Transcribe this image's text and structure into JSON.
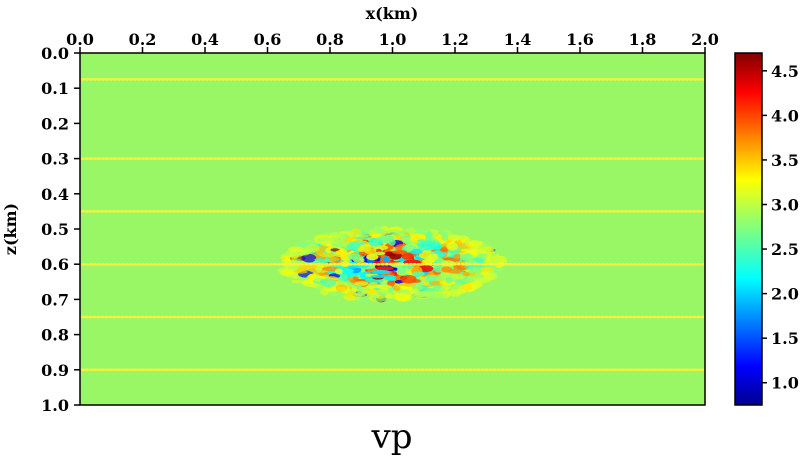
{
  "chart_data": {
    "type": "heatmap",
    "title": "",
    "caption": "vp",
    "xlabel": "x(km)",
    "ylabel": "z(km)",
    "x_axis_position": "top",
    "xlim": [
      0.0,
      2.0
    ],
    "ylim": [
      0.0,
      1.0
    ],
    "y_inverted": true,
    "x_ticks": [
      "0.0",
      "0.2",
      "0.4",
      "0.6",
      "0.8",
      "1.0",
      "1.2",
      "1.4",
      "1.6",
      "1.8",
      "2.0"
    ],
    "y_ticks": [
      "0.0",
      "0.1",
      "0.2",
      "0.3",
      "0.4",
      "0.5",
      "0.6",
      "0.7",
      "0.8",
      "0.9",
      "1.0"
    ],
    "background_value": 3.0,
    "anomaly": {
      "x_range": [
        0.65,
        1.35
      ],
      "z_range": [
        0.5,
        0.7
      ],
      "min_value": 1.0,
      "max_value": 4.6
    },
    "receiver_depths": [
      0.075,
      0.3,
      0.45,
      0.6,
      0.75,
      0.9
    ],
    "colorbar": {
      "colormap": "jet",
      "range": [
        0.75,
        4.7
      ],
      "ticks": [
        "1.0",
        "1.5",
        "2.0",
        "2.5",
        "3.0",
        "3.5",
        "4.0",
        "4.5"
      ],
      "position": "right"
    },
    "colors": {
      "background_field": "#99f766",
      "receiver_dots": "#ffef3a"
    }
  }
}
